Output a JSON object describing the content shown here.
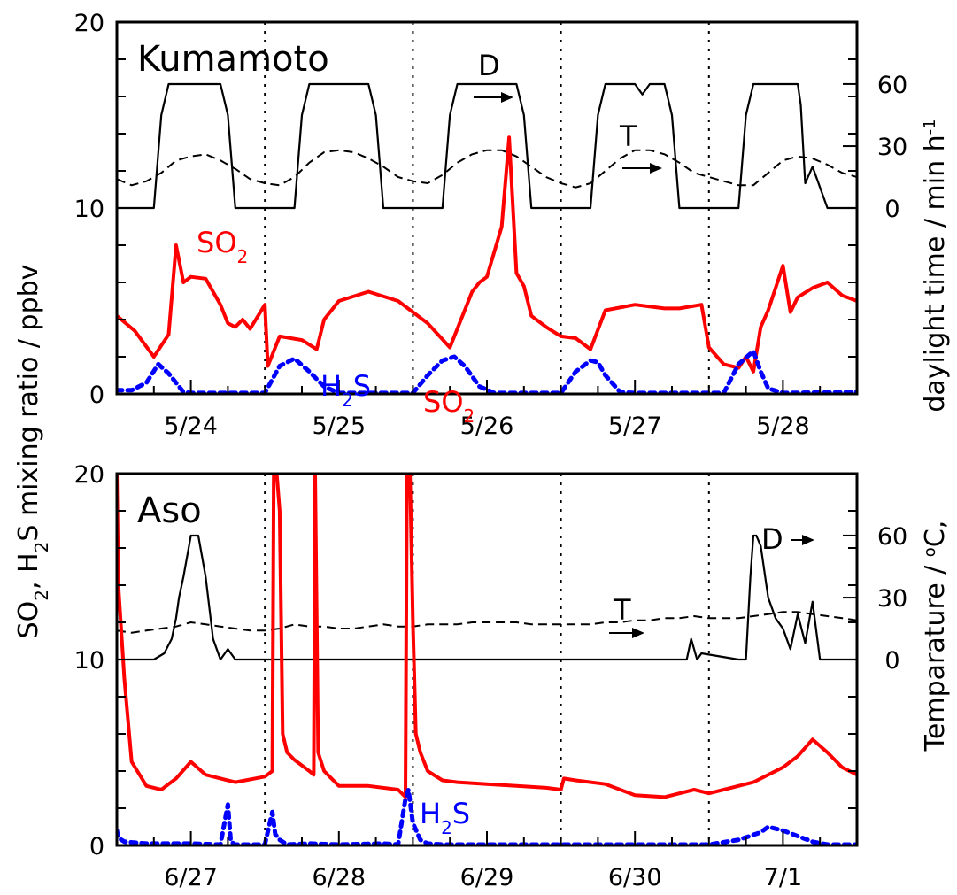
{
  "figure": {
    "left_axis_title_main": "SO",
    "left_axis_title_sub1": "2",
    "left_axis_title_mid": ", H",
    "left_axis_title_sub2": "2",
    "left_axis_title_end": "S mixing ratio  /  ppbv",
    "right_axis_title_top_main": "daylight time  /  min h",
    "right_axis_title_top_sup": "-1",
    "right_axis_title_bottom_main": "Temparature  /  ",
    "right_axis_title_bottom_sup": "o",
    "right_axis_title_bottom_end": "C,"
  },
  "chart_data": [
    {
      "type": "line",
      "panel": "Kumamoto",
      "site_label": "Kumamoto",
      "x_tick_labels": [
        "5/24",
        "5/25",
        "5/26",
        "5/27",
        "5/28"
      ],
      "x_tick_days": [
        1,
        2,
        3,
        4,
        5
      ],
      "day_boundaries": [
        1.5,
        2.5,
        3.5,
        4.5
      ],
      "xlim": [
        0.5,
        5.5
      ],
      "ylim_left": [
        0,
        20
      ],
      "left_tick_labels": [
        "0",
        "10",
        "20"
      ],
      "right_axis_ticks": [
        {
          "label": "0",
          "left_value": 10
        },
        {
          "label": "30",
          "left_value": 13.33
        },
        {
          "label": "60",
          "left_value": 16.67
        }
      ],
      "annotations": {
        "so2_main": "SO",
        "so2_sub": "2",
        "h2s_h": "H",
        "h2s_sub": "2",
        "h2s_s": "S",
        "d": "D",
        "t": "T"
      },
      "series": [
        {
          "name": "SO2",
          "color": "#ff0000",
          "style": "solid",
          "axis": "left",
          "x": [
            0.5,
            0.62,
            0.75,
            0.85,
            0.9,
            0.95,
            1.0,
            1.1,
            1.2,
            1.25,
            1.3,
            1.35,
            1.4,
            1.5,
            1.52,
            1.6,
            1.75,
            1.85,
            1.9,
            2.0,
            2.2,
            2.4,
            2.5,
            2.6,
            2.75,
            2.9,
            2.95,
            3.0,
            3.1,
            3.15,
            3.2,
            3.25,
            3.3,
            3.4,
            3.5,
            3.6,
            3.7,
            3.8,
            4.0,
            4.2,
            4.3,
            4.45,
            4.5,
            4.6,
            4.7,
            4.75,
            4.8,
            4.85,
            4.9,
            5.0,
            5.05,
            5.1,
            5.2,
            5.3,
            5.4,
            5.5
          ],
          "values": [
            4.2,
            3.4,
            2.0,
            3.2,
            8.0,
            6.0,
            6.3,
            6.2,
            4.8,
            3.8,
            3.6,
            4.0,
            3.5,
            4.8,
            1.5,
            3.1,
            2.9,
            2.4,
            4.0,
            5.0,
            5.5,
            5.0,
            4.4,
            3.8,
            2.5,
            5.5,
            6.0,
            6.3,
            9.0,
            13.8,
            6.5,
            5.8,
            4.2,
            3.6,
            3.1,
            3.0,
            2.4,
            4.5,
            4.8,
            4.6,
            4.6,
            4.8,
            2.5,
            1.6,
            1.4,
            2.0,
            1.2,
            3.6,
            4.5,
            6.9,
            4.4,
            5.2,
            5.7,
            6.0,
            5.3,
            5.0
          ]
        },
        {
          "name": "H2S",
          "color": "#0000ff",
          "style": "dotted",
          "axis": "left",
          "x": [
            0.5,
            0.6,
            0.7,
            0.78,
            0.85,
            0.95,
            1.0,
            1.5,
            1.6,
            1.7,
            1.8,
            1.9,
            2.0,
            2.5,
            2.6,
            2.7,
            2.78,
            2.85,
            2.95,
            3.05,
            3.5,
            3.6,
            3.7,
            3.75,
            3.8,
            3.9,
            4.0,
            4.6,
            4.7,
            4.8,
            4.85,
            4.9,
            5.0,
            5.5
          ],
          "values": [
            0.2,
            0.2,
            0.6,
            1.6,
            1.1,
            0.1,
            0.05,
            0.05,
            1.5,
            1.9,
            1.2,
            0.4,
            0.05,
            0.05,
            1.0,
            1.8,
            2.0,
            1.5,
            0.4,
            0.05,
            0.05,
            1.2,
            1.8,
            1.7,
            1.0,
            0.1,
            0.05,
            0.05,
            1.6,
            2.3,
            1.2,
            0.3,
            0.05,
            0.1
          ]
        },
        {
          "name": "D",
          "color": "#000000",
          "style": "solid",
          "axis": "right",
          "x": [
            0.5,
            0.75,
            0.8,
            0.85,
            1.2,
            1.25,
            1.3,
            1.5,
            1.7,
            1.75,
            1.8,
            2.2,
            2.25,
            2.3,
            2.5,
            2.7,
            2.75,
            2.8,
            3.2,
            3.25,
            3.3,
            3.5,
            3.7,
            3.75,
            3.8,
            4.0,
            4.05,
            4.1,
            4.2,
            4.25,
            4.3,
            4.5,
            4.7,
            4.75,
            4.8,
            5.1,
            5.12,
            5.15,
            5.2,
            5.3,
            5.5
          ],
          "values": [
            0,
            0,
            45,
            60,
            60,
            45,
            0,
            0,
            0,
            45,
            60,
            60,
            45,
            0,
            0,
            0,
            45,
            60,
            60,
            45,
            0,
            0,
            0,
            45,
            60,
            60,
            55,
            60,
            60,
            45,
            0,
            0,
            0,
            45,
            60,
            60,
            50,
            12,
            20,
            0,
            0
          ]
        },
        {
          "name": "T",
          "color": "#000000",
          "style": "dashed",
          "axis": "right",
          "x": [
            0.5,
            0.6,
            0.7,
            0.8,
            0.9,
            1.0,
            1.1,
            1.2,
            1.3,
            1.4,
            1.5,
            1.6,
            1.7,
            1.8,
            1.9,
            2.0,
            2.1,
            2.2,
            2.3,
            2.4,
            2.5,
            2.6,
            2.7,
            2.8,
            2.9,
            3.0,
            3.1,
            3.2,
            3.3,
            3.4,
            3.5,
            3.6,
            3.7,
            3.8,
            3.9,
            4.0,
            4.1,
            4.2,
            4.3,
            4.4,
            4.5,
            4.6,
            4.7,
            4.8,
            4.9,
            5.0,
            5.1,
            5.2,
            5.3,
            5.4,
            5.5
          ],
          "values": [
            14,
            11,
            13,
            17,
            23,
            25,
            26,
            23,
            19,
            14,
            12,
            11,
            15,
            22,
            27,
            28,
            27,
            24,
            20,
            15,
            13,
            12,
            16,
            22,
            26,
            28,
            28,
            25,
            20,
            15,
            12,
            10,
            12,
            18,
            24,
            28,
            28,
            26,
            22,
            17,
            15,
            13,
            11,
            11,
            17,
            23,
            25,
            24,
            21,
            17,
            15
          ]
        }
      ]
    },
    {
      "type": "line",
      "panel": "Aso",
      "site_label": "Aso",
      "x_tick_labels": [
        "6/27",
        "6/28",
        "6/29",
        "6/30",
        "7/1"
      ],
      "x_tick_days": [
        1,
        2,
        3,
        4,
        5
      ],
      "day_boundaries": [
        1.5,
        2.5,
        3.5,
        4.5
      ],
      "xlim": [
        0.5,
        5.5
      ],
      "ylim_left": [
        0,
        20
      ],
      "left_tick_labels": [
        "0",
        "10",
        "20"
      ],
      "right_axis_ticks": [
        {
          "label": "0",
          "left_value": 10
        },
        {
          "label": "30",
          "left_value": 13.33
        },
        {
          "label": "60",
          "left_value": 16.67
        }
      ],
      "annotations": {
        "so2_main": "SO",
        "so2_sub": "2",
        "h2s_h": "H",
        "h2s_sub": "2",
        "h2s_s": "S",
        "d": "D",
        "t": "T"
      },
      "series": [
        {
          "name": "SO2",
          "color": "#ff0000",
          "style": "solid",
          "axis": "left",
          "x": [
            0.5,
            0.51,
            0.55,
            0.6,
            0.7,
            0.8,
            0.9,
            1.0,
            1.1,
            1.3,
            1.5,
            1.55,
            1.56,
            1.58,
            1.6,
            1.62,
            1.65,
            1.7,
            1.8,
            1.83,
            1.84,
            1.86,
            1.9,
            2.0,
            2.2,
            2.4,
            2.45,
            2.46,
            2.48,
            2.5,
            2.52,
            2.55,
            2.6,
            2.7,
            2.8,
            3.0,
            3.2,
            3.4,
            3.5,
            3.52,
            3.6,
            3.8,
            4.0,
            4.2,
            4.4,
            4.5,
            4.6,
            4.8,
            5.0,
            5.1,
            5.2,
            5.3,
            5.4,
            5.5
          ],
          "values": [
            20,
            14,
            9,
            4.5,
            3.2,
            3.0,
            3.6,
            4.5,
            3.8,
            3.4,
            3.7,
            4.0,
            20,
            20,
            18,
            6,
            5.0,
            4.6,
            4.0,
            3.8,
            20,
            5.0,
            4.0,
            3.2,
            3.2,
            3.0,
            2.6,
            20,
            20,
            12,
            6,
            5.0,
            4.0,
            3.5,
            3.4,
            3.3,
            3.2,
            3.1,
            3.0,
            3.6,
            3.5,
            3.3,
            2.7,
            2.6,
            3.0,
            2.8,
            3.0,
            3.4,
            4.2,
            4.8,
            5.7,
            5.0,
            4.2,
            3.8
          ]
        },
        {
          "name": "H2S",
          "color": "#0000ff",
          "style": "dotted",
          "axis": "left",
          "x": [
            0.5,
            0.51,
            0.55,
            0.7,
            1.0,
            1.2,
            1.25,
            1.27,
            1.3,
            1.5,
            1.55,
            1.57,
            1.6,
            1.65,
            1.8,
            2.0,
            2.3,
            2.4,
            2.45,
            2.47,
            2.5,
            2.55,
            2.6,
            2.7,
            3.0,
            3.5,
            4.0,
            4.5,
            4.7,
            4.85,
            4.9,
            5.0,
            5.1,
            5.2,
            5.3,
            5.5
          ],
          "values": [
            0.8,
            0.4,
            0.2,
            0.1,
            0.1,
            0.05,
            2.2,
            0.2,
            0.05,
            0.05,
            1.8,
            0.6,
            0.3,
            0.05,
            0.1,
            0.05,
            0.1,
            0.05,
            2.5,
            3.0,
            1.2,
            0.3,
            0.1,
            0.05,
            0.05,
            0.05,
            0.05,
            0.05,
            0.3,
            0.7,
            1.0,
            0.8,
            0.5,
            0.2,
            0.05,
            0.05
          ]
        },
        {
          "name": "D",
          "color": "#000000",
          "style": "solid",
          "axis": "right",
          "x": [
            0.5,
            0.75,
            0.82,
            0.87,
            0.9,
            0.92,
            0.95,
            1.0,
            1.05,
            1.1,
            1.15,
            1.2,
            1.25,
            1.3,
            4.3,
            4.35,
            4.38,
            4.42,
            4.45,
            4.7,
            4.75,
            4.78,
            4.8,
            4.82,
            4.85,
            4.9,
            4.95,
            5.0,
            5.05,
            5.1,
            5.15,
            5.2,
            5.25,
            5.3,
            5.5
          ],
          "values": [
            0,
            0,
            3,
            10,
            20,
            30,
            40,
            60,
            60,
            40,
            10,
            0,
            5,
            0,
            0,
            0,
            10,
            0,
            3,
            0,
            0,
            40,
            60,
            60,
            55,
            30,
            20,
            15,
            5,
            22,
            8,
            28,
            0,
            0,
            0
          ]
        },
        {
          "name": "T",
          "color": "#000000",
          "style": "dashed",
          "axis": "right",
          "x": [
            0.5,
            0.6,
            0.7,
            0.8,
            0.9,
            1.0,
            1.1,
            1.2,
            1.3,
            1.4,
            1.5,
            1.6,
            1.7,
            1.8,
            1.9,
            2.0,
            2.1,
            2.2,
            2.3,
            2.4,
            2.5,
            2.6,
            2.7,
            2.8,
            2.9,
            3.0,
            3.1,
            3.2,
            3.3,
            3.4,
            3.5,
            3.6,
            3.7,
            3.8,
            3.9,
            4.0,
            4.1,
            4.2,
            4.3,
            4.4,
            4.5,
            4.6,
            4.7,
            4.8,
            4.9,
            5.0,
            5.1,
            5.2,
            5.3,
            5.4,
            5.5
          ],
          "values": [
            14,
            13,
            14,
            15,
            16,
            18,
            17,
            16,
            15,
            14,
            14,
            15,
            17,
            16,
            16,
            15,
            15,
            16,
            17,
            16,
            16,
            17,
            17,
            17,
            18,
            18,
            18,
            18,
            17,
            17,
            17,
            17,
            17,
            18,
            18,
            19,
            19,
            20,
            20,
            21,
            20,
            20,
            20,
            21,
            22,
            23,
            23,
            22,
            21,
            20,
            19
          ]
        }
      ]
    }
  ]
}
